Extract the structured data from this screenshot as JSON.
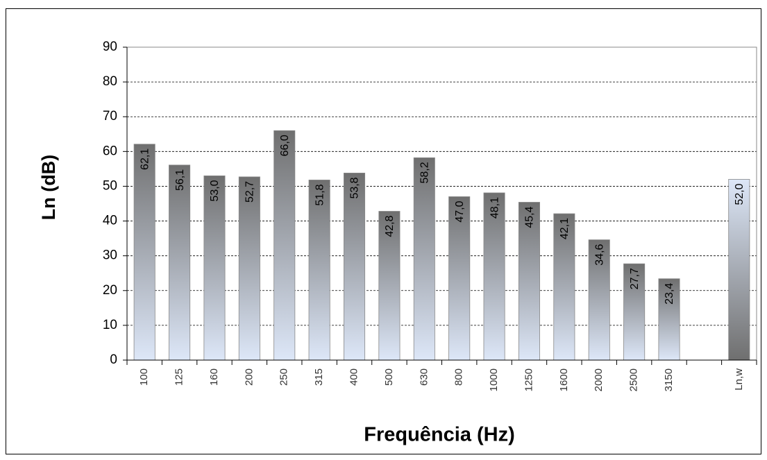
{
  "chart_data": {
    "type": "bar",
    "x_label": "Frequência (Hz)",
    "y_label": "Ln (dB)",
    "categories": [
      "100",
      "125",
      "160",
      "200",
      "250",
      "315",
      "400",
      "500",
      "630",
      "800",
      "1000",
      "1250",
      "1600",
      "2000",
      "2500",
      "3150",
      null,
      "Ln,w"
    ],
    "values": [
      62.1,
      56.1,
      53.0,
      52.7,
      66.0,
      51.8,
      53.8,
      42.8,
      58.2,
      47.0,
      48.1,
      45.4,
      42.1,
      34.6,
      27.7,
      23.4,
      null,
      52.0
    ],
    "value_labels": [
      "62,1",
      "56,1",
      "53,0",
      "52,7",
      "66,0",
      "51,8",
      "53,8",
      "42,8",
      "58,2",
      "47,0",
      "48,1",
      "45,4",
      "42,1",
      "34,6",
      "27,7",
      "23,4",
      null,
      "52,0"
    ],
    "colors": [
      "#6f6f6f",
      "#dde7f8"
    ],
    "ylim": [
      0,
      90
    ],
    "yticks": [
      0,
      10,
      20,
      30,
      40,
      50,
      60,
      70,
      80,
      90
    ],
    "grid": true
  }
}
